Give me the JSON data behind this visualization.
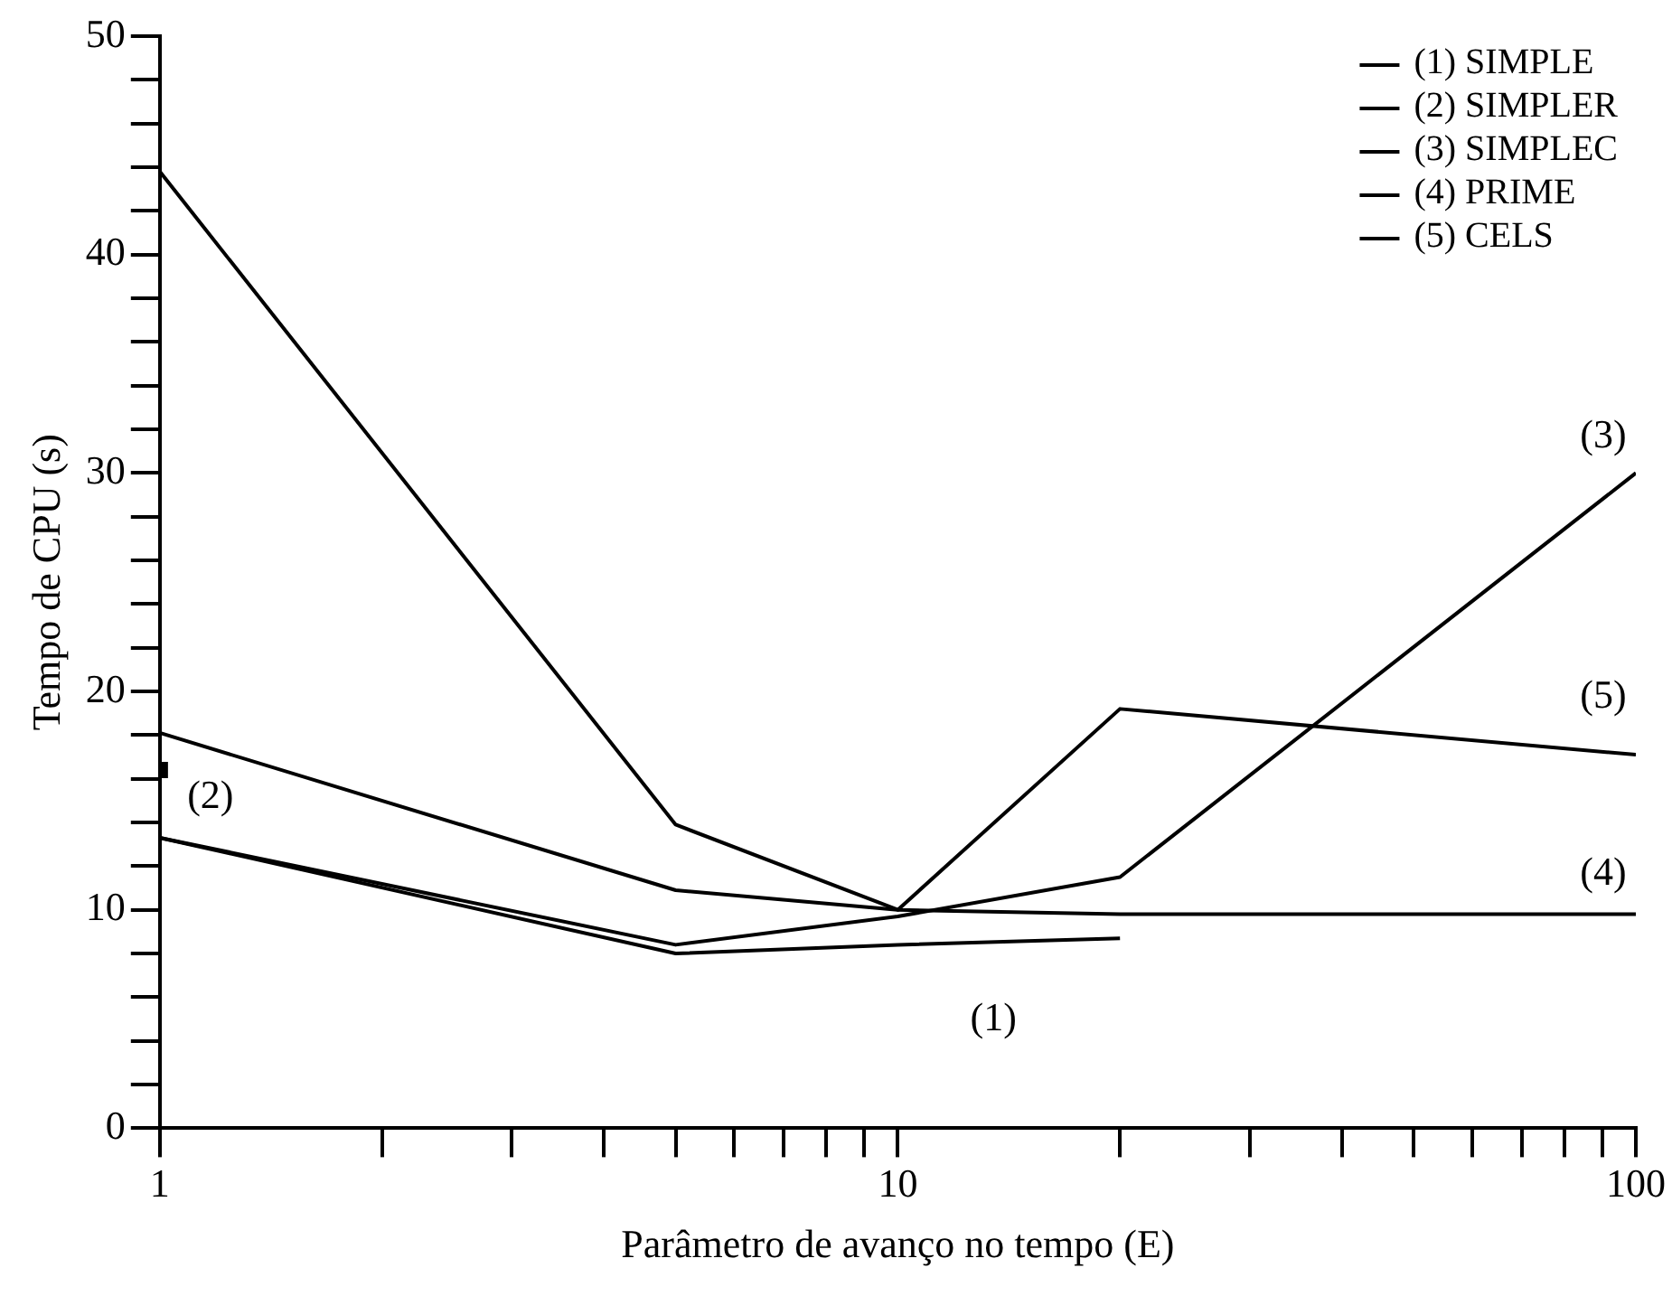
{
  "chart_data": {
    "type": "line",
    "xlabel": "Parâmetro de avanço no tempo (E)",
    "ylabel": "Tempo de CPU (s)",
    "x": [
      1,
      5,
      10,
      20,
      100
    ],
    "series": [
      {
        "name": "(1) SIMPLE",
        "color": "#000000",
        "values": [
          13.3,
          8.0,
          8.4,
          8.7,
          null
        ]
      },
      {
        "name": "(2) SIMPLER",
        "color": "#000000",
        "values": [
          16.4,
          null,
          null,
          null,
          null
        ],
        "marker": "square"
      },
      {
        "name": "(3) SIMPLEC",
        "color": "#000000",
        "values": [
          13.3,
          8.4,
          9.7,
          11.5,
          30
        ]
      },
      {
        "name": "(4) PRIME",
        "color": "#000000",
        "values": [
          18.1,
          10.9,
          10,
          9.8,
          9.8
        ]
      },
      {
        "name": "(5) CELS",
        "color": "#000000",
        "values": [
          43.8,
          13.9,
          10,
          19.2,
          17.1
        ]
      }
    ],
    "log": "x",
    "xlim": [
      1,
      100
    ],
    "xticks": [
      1,
      {
        "value": 2,
        "label": null
      },
      {
        "value": 3,
        "label": null
      },
      {
        "value": 4,
        "label": null
      },
      {
        "value": 5,
        "label": null
      },
      {
        "value": 6,
        "label": null
      },
      {
        "value": 7,
        "label": null
      },
      {
        "value": 8,
        "label": null
      },
      {
        "value": 9,
        "label": null
      },
      10,
      {
        "value": 20,
        "label": null
      },
      {
        "value": 30,
        "label": null
      },
      {
        "value": 40,
        "label": null
      },
      {
        "value": 50,
        "label": null
      },
      {
        "value": 60,
        "label": null
      },
      {
        "value": 70,
        "label": null
      },
      {
        "value": 80,
        "label": null
      },
      {
        "value": 90,
        "label": null
      },
      100
    ],
    "ylim": [
      0,
      50
    ],
    "yticks": [
      0,
      {
        "value": 2,
        "label": null
      },
      {
        "value": 4,
        "label": null
      },
      {
        "value": 6,
        "label": null
      },
      {
        "value": 8,
        "label": null
      },
      10,
      {
        "value": 12,
        "label": null
      },
      {
        "value": 14,
        "label": null
      },
      {
        "value": 16,
        "label": null
      },
      {
        "value": 18,
        "label": null
      },
      20,
      {
        "value": 22,
        "label": null
      },
      {
        "value": 24,
        "label": null
      },
      {
        "value": 26,
        "label": null
      },
      {
        "value": 28,
        "label": null
      },
      30,
      {
        "value": 32,
        "label": null
      },
      {
        "value": 34,
        "label": null
      },
      {
        "value": 36,
        "label": null
      },
      {
        "value": 38,
        "label": null
      },
      40,
      {
        "value": 42,
        "label": null
      },
      {
        "value": 44,
        "label": null
      },
      {
        "value": 46,
        "label": null
      },
      {
        "value": 48,
        "label": null
      },
      50
    ],
    "annotations": [
      {
        "text": "(1)",
        "x": 20,
        "y": 8.7
      },
      {
        "text": "(2)",
        "x": 1,
        "y": 16.4
      },
      {
        "text": "(3)",
        "x": 100,
        "y": 30
      },
      {
        "text": "(4)",
        "x": 100,
        "y": 9.8
      },
      {
        "text": "(5)",
        "x": 100,
        "y": 17.1
      }
    ],
    "grid": false,
    "legend": "top right",
    "marker": "none",
    "line_style": "solid"
  }
}
